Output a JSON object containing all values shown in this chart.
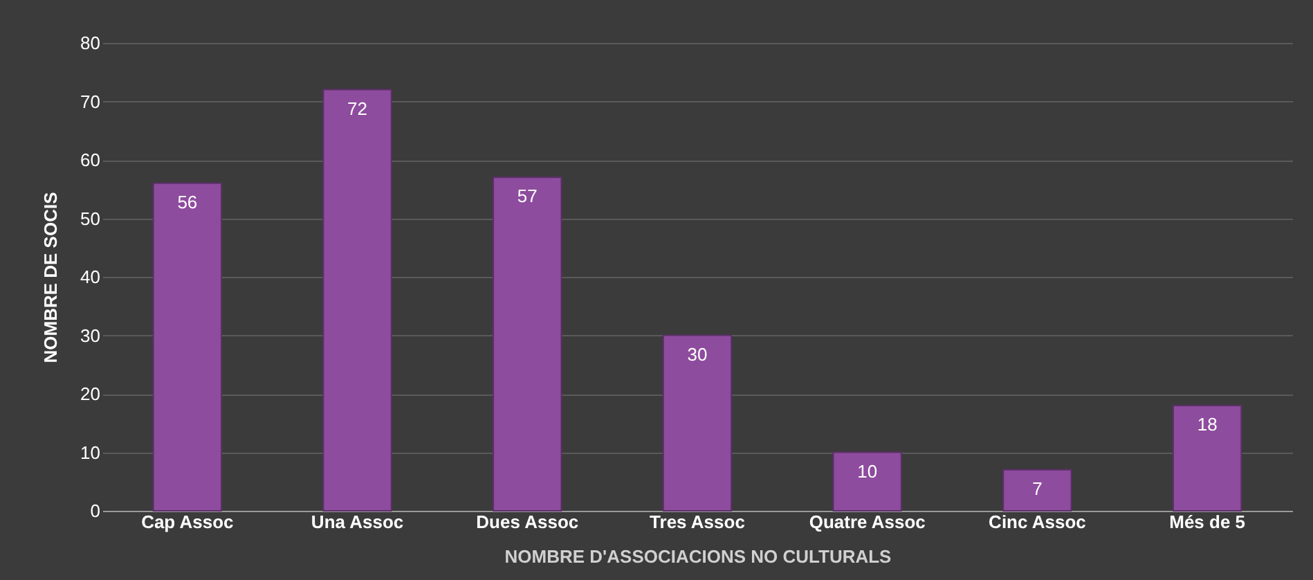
{
  "chart_data": {
    "type": "bar",
    "categories": [
      "Cap Assoc",
      "Una Assoc",
      "Dues Assoc",
      "Tres Assoc",
      "Quatre Assoc",
      "Cinc Assoc",
      "Més de 5"
    ],
    "values": [
      56,
      72,
      57,
      30,
      10,
      7,
      18
    ],
    "color": "#8e4c9e",
    "xlabel": "NOMBRE D'ASSOCIACIONS NO CULTURALS",
    "ylabel": "NOMBRE DE SOCIS",
    "ylim": [
      0,
      80
    ],
    "yticks": [
      0,
      10,
      20,
      30,
      40,
      50,
      60,
      70,
      80
    ],
    "grid": "y",
    "data_labels": true
  }
}
